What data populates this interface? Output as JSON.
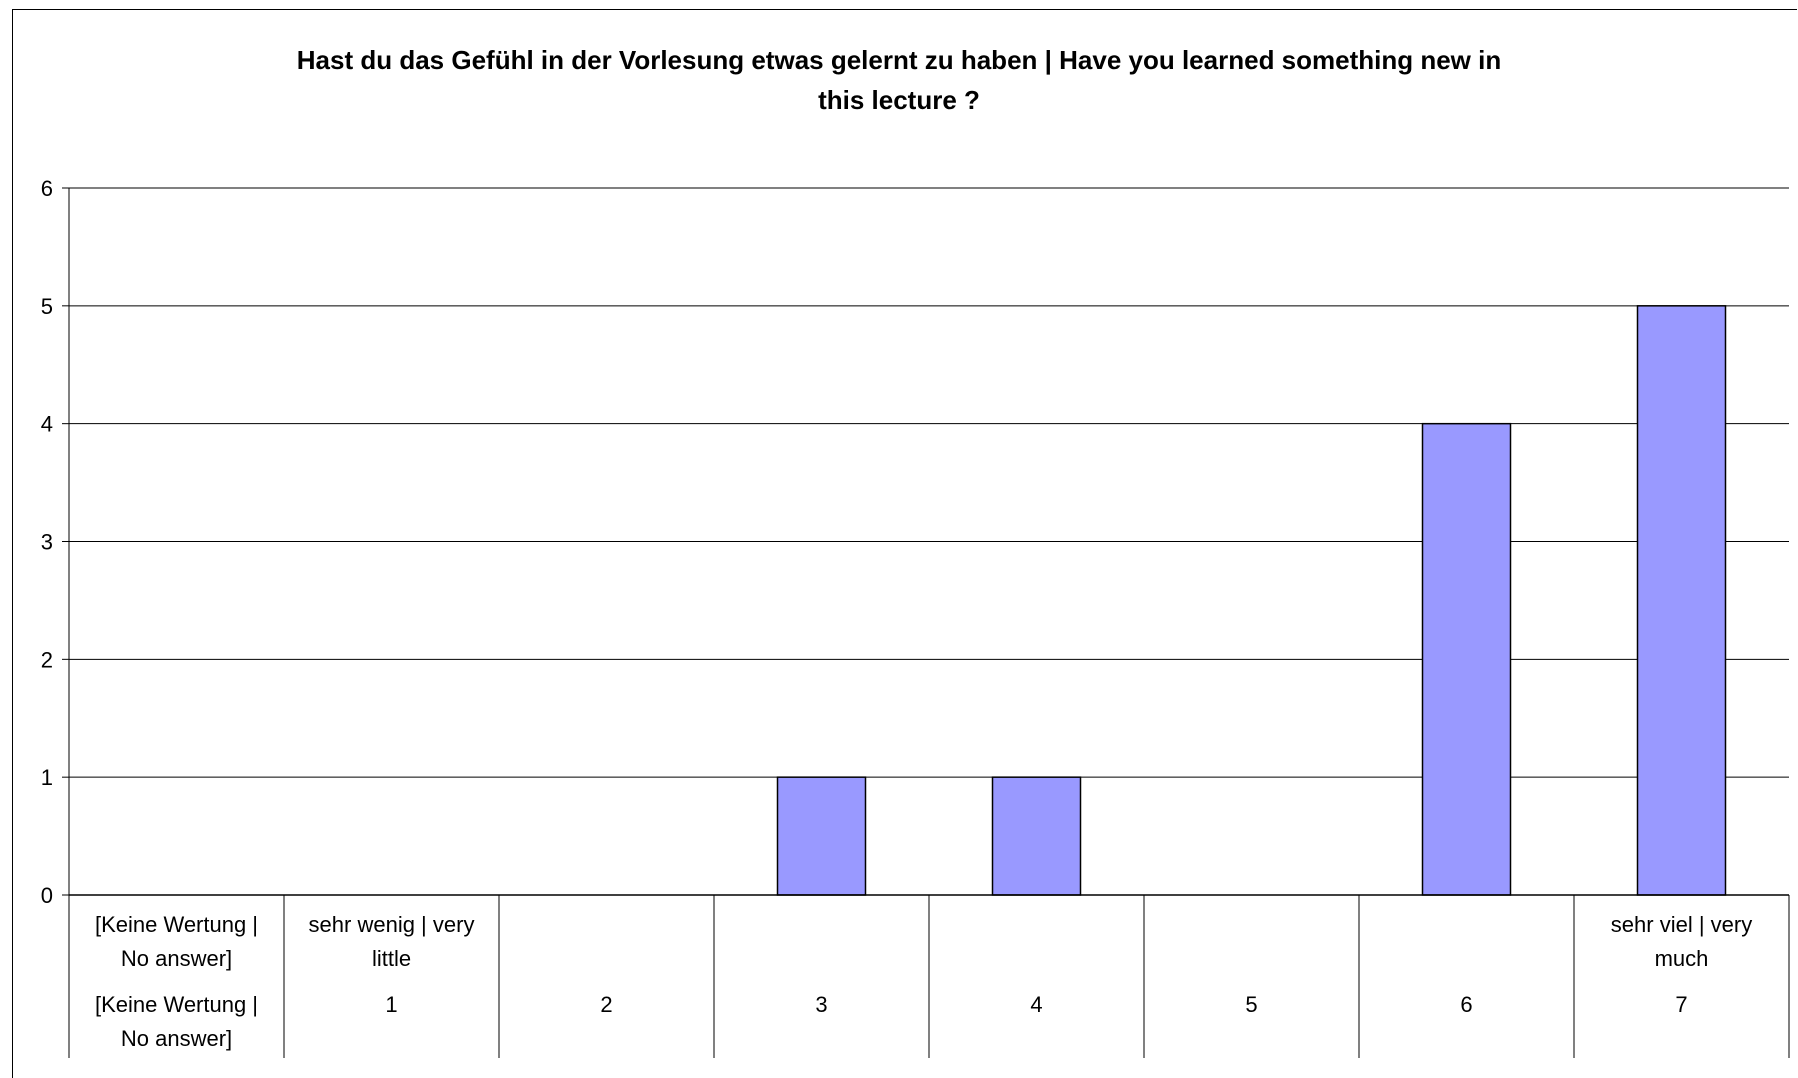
{
  "chart_data": {
    "type": "bar",
    "title_lines": [
      "Hast du das Gefühl in der Vorlesung etwas gelernt zu haben | Have you learned something new in",
      "this lecture ?"
    ],
    "categories": [
      {
        "desc": [
          "[Keine Wertung |",
          "No answer]"
        ],
        "label": [
          "[Keine Wertung |",
          "No answer]"
        ]
      },
      {
        "desc": [
          "sehr wenig | very",
          "little"
        ],
        "label": [
          "1"
        ]
      },
      {
        "desc": [],
        "label": [
          "2"
        ]
      },
      {
        "desc": [],
        "label": [
          "3"
        ]
      },
      {
        "desc": [],
        "label": [
          "4"
        ]
      },
      {
        "desc": [],
        "label": [
          "5"
        ]
      },
      {
        "desc": [],
        "label": [
          "6"
        ]
      },
      {
        "desc": [
          "sehr viel | very",
          "much"
        ],
        "label": [
          "7"
        ]
      }
    ],
    "values": [
      0,
      0,
      0,
      1,
      1,
      0,
      4,
      5
    ],
    "ylim": [
      0,
      6
    ],
    "yticks": [
      0,
      1,
      2,
      3,
      4,
      5,
      6
    ],
    "grid": true,
    "bar_color": "#9999ff",
    "bar_border": "#000000",
    "legend": "none"
  }
}
